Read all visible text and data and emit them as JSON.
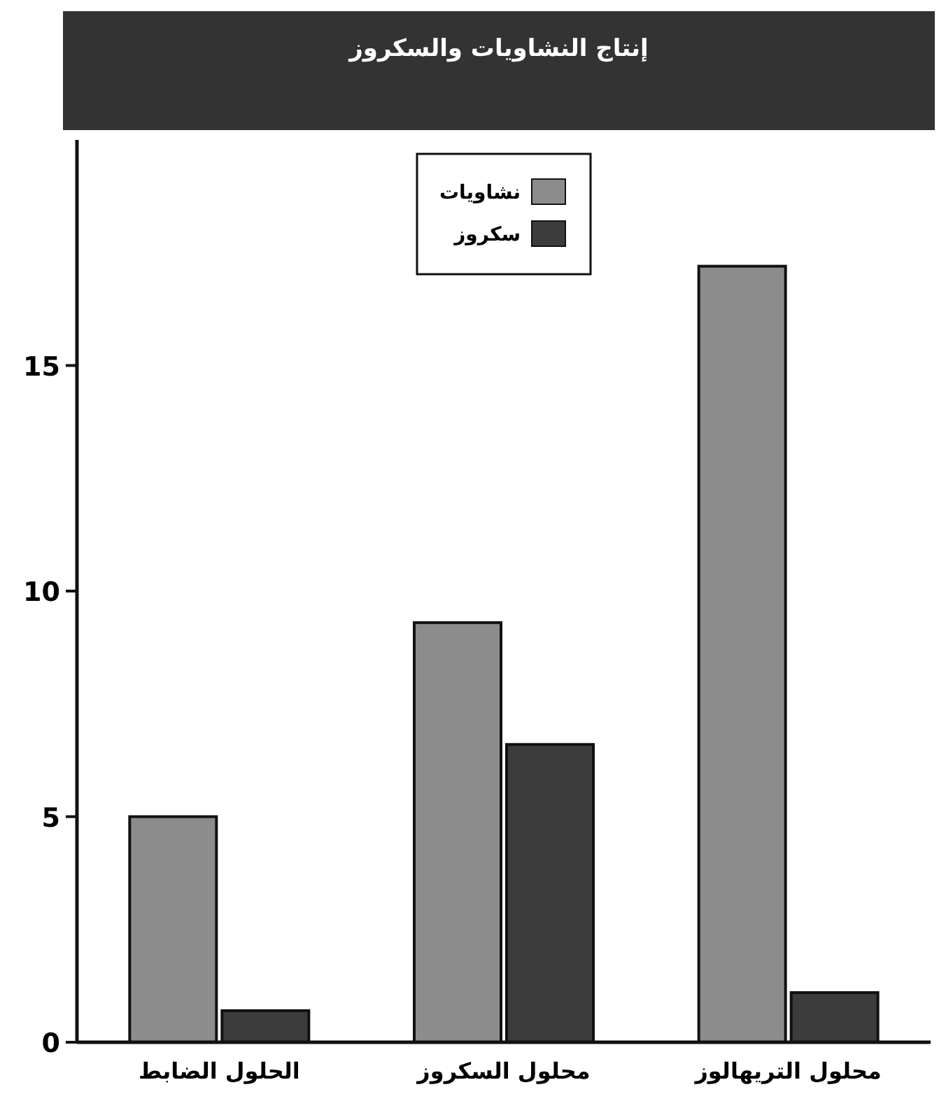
{
  "chart_data": {
    "type": "bar",
    "title": "إنتاج النشاويات والسكروز",
    "categories": [
      "الحلول الضابط",
      "محلول السكروز",
      "محلول التريهالوز"
    ],
    "series": [
      {
        "name": "نشاويات",
        "color": "#8c8c8c",
        "values": [
          5.0,
          9.3,
          17.2
        ]
      },
      {
        "name": "سكروز",
        "color": "#3c3c3c",
        "values": [
          0.7,
          6.6,
          1.1
        ]
      }
    ],
    "ylim": [
      0,
      20
    ],
    "yticks": [
      0,
      5,
      10,
      15
    ],
    "legend": "top",
    "grid": false
  }
}
